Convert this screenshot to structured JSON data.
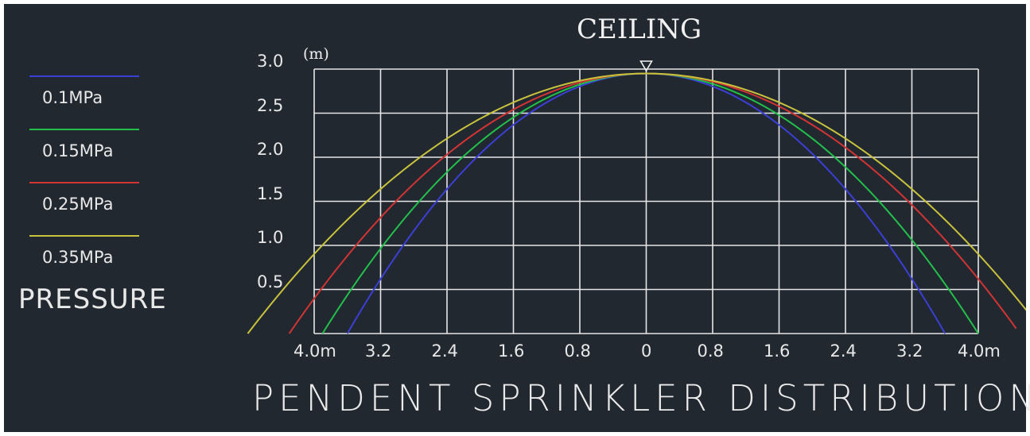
{
  "chart_data": {
    "type": "line",
    "title": "PENDENT SPRINKLER DISTRIBUTION",
    "top_label": "CEILING",
    "y_unit": "(m)",
    "legend_title": "PRESSURE",
    "ylim": [
      0,
      3.0
    ],
    "xlim": [
      -4.0,
      4.0
    ],
    "y_ticks": [
      "3.0",
      "2.5",
      "2.0",
      "1.5",
      "1.0",
      "0.5"
    ],
    "x_ticks": [
      "4.0m",
      "3.2",
      "2.4",
      "1.6",
      "0.8",
      "0",
      "0.8",
      "1.6",
      "2.4",
      "3.2",
      "4.0m"
    ],
    "grid": true,
    "background": "#212830",
    "series": [
      {
        "name": "0.1MPa",
        "color": "#3b3fd6",
        "peak": 2.95,
        "x_left": -3.6,
        "x_right": 3.6
      },
      {
        "name": "0.15MPa",
        "color": "#22c04a",
        "peak": 2.95,
        "x_left": -3.9,
        "x_right": 4.0
      },
      {
        "name": "0.25MPa",
        "color": "#d23434",
        "peak": 2.95,
        "x_left": -4.3,
        "x_right": 4.5
      },
      {
        "name": "0.35MPa",
        "color": "#c9c23c",
        "peak": 2.95,
        "x_left": -4.8,
        "x_right": 4.8
      }
    ]
  }
}
